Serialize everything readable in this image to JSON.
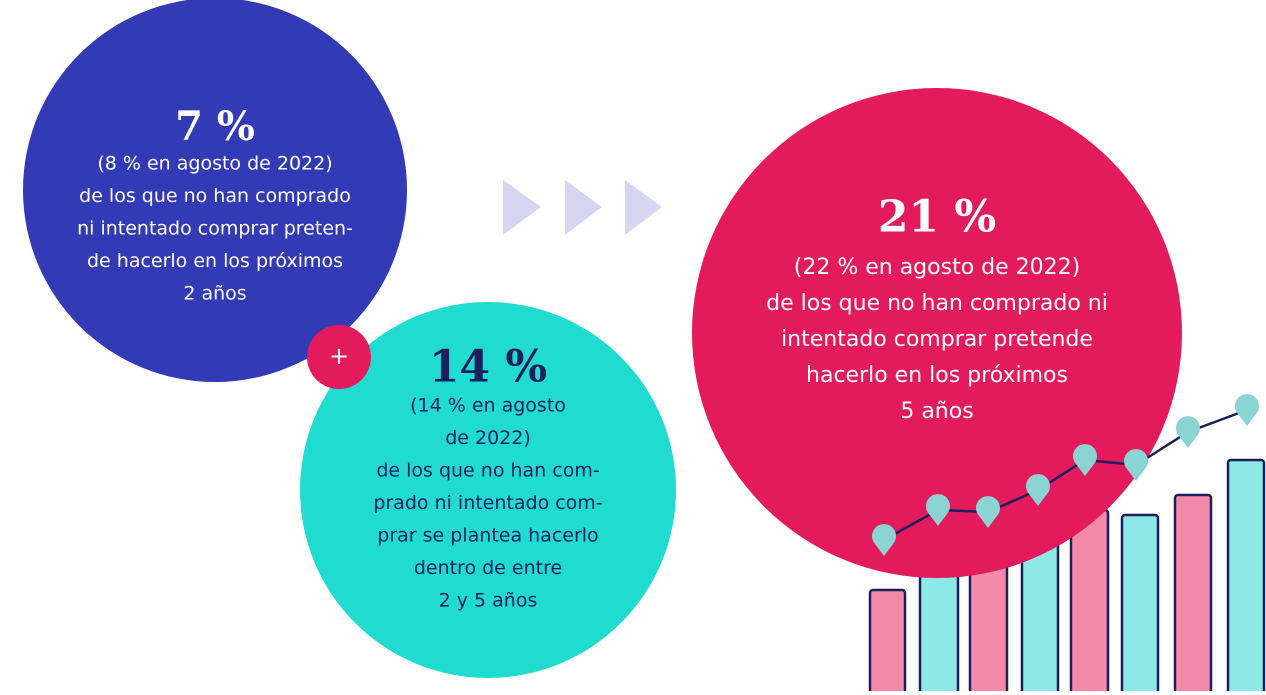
{
  "circles": [
    {
      "percent": "7 %",
      "note": [
        "(8 % en agosto de 2022)"
      ],
      "lines": [
        "de los que no han comprado",
        "ni intentado comprar preten-",
        "de hacerlo en los próximos",
        "2 años"
      ]
    },
    {
      "percent": "14 %",
      "note": [
        "(14 % en agosto",
        "de 2022)"
      ],
      "lines": [
        "de los que no han com-",
        "prado ni intentado com-",
        "prar se plantea hacerlo",
        "dentro de entre",
        "2 y 5 años"
      ]
    },
    {
      "percent": "21 %",
      "note": [
        "(22 % en agosto de 2022)"
      ],
      "lines": [
        "de los que no han comprado ni",
        "intentado comprar pretende",
        "hacerlo en los próximos",
        "5 años"
      ]
    }
  ],
  "plus": "+"
}
